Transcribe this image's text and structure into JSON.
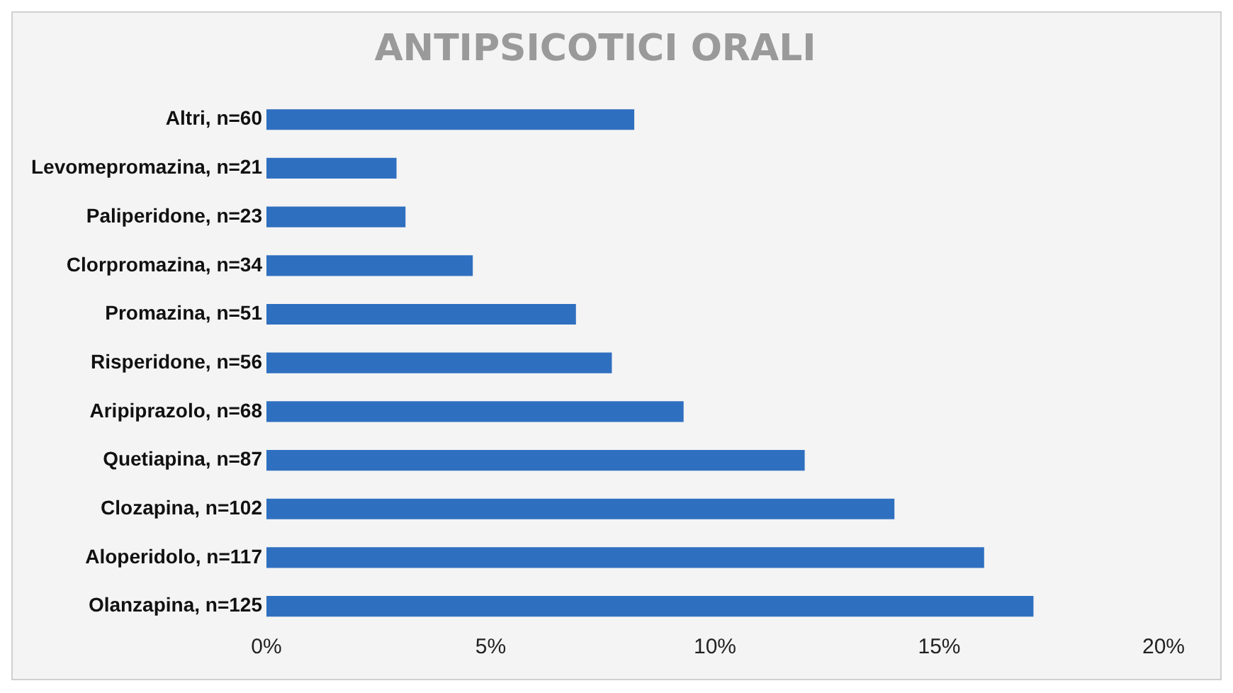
{
  "chart_data": {
    "type": "bar",
    "orientation": "horizontal",
    "title": "ANTIPSICOTICI ORALI",
    "categories": [
      "Altri, n=60",
      "Levomepromazina, n=21",
      "Paliperidone, n=23",
      "Clorpromazina, n=34",
      "Promazina, n=51",
      "Risperidone, n=56",
      "Aripiprazolo, n=68",
      "Quetiapina, n=87",
      "Clozapina, n=102",
      "Aloperidolo, n=117",
      "Olanzapina, n=125"
    ],
    "values": [
      8.2,
      2.9,
      3.1,
      4.6,
      6.9,
      7.7,
      9.3,
      12.0,
      14.0,
      16.0,
      17.1
    ],
    "color": "#2f6fc0",
    "xlim": [
      0,
      20
    ],
    "xticks": [
      {
        "value": 0,
        "label": "0%"
      },
      {
        "value": 5,
        "label": "5%"
      },
      {
        "value": 10,
        "label": "10%"
      },
      {
        "value": 15,
        "label": "15%"
      },
      {
        "value": 20,
        "label": "20%"
      }
    ],
    "grid": false,
    "legend": false
  }
}
